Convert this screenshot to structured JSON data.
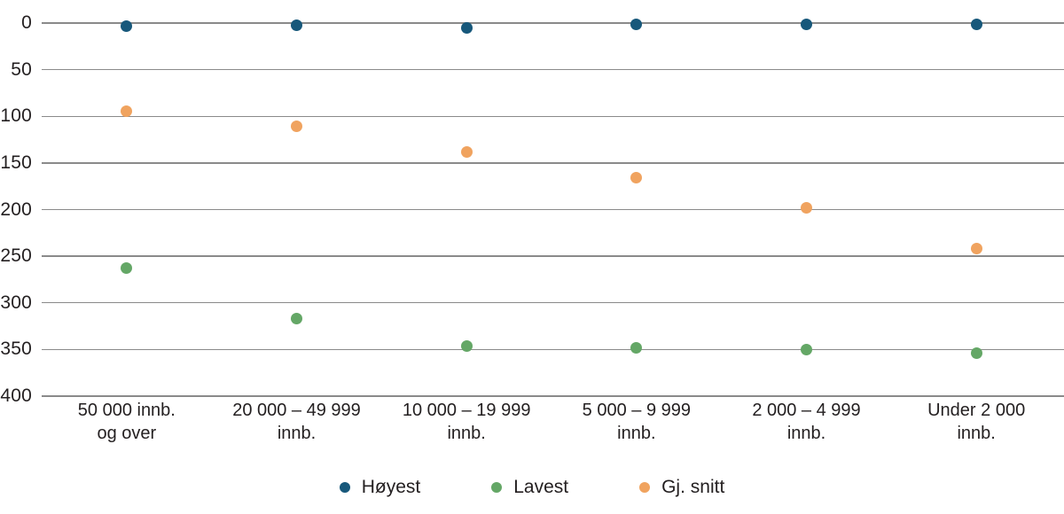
{
  "chart_data": {
    "type": "scatter",
    "title": "",
    "xlabel": "",
    "ylabel": "",
    "categories": [
      "50 000 innb.\nog over",
      "20 000 – 49 999\ninnb.",
      "10 000 – 19 999\ninnb.",
      "5 000 – 9 999\ninnb.",
      "2 000 – 4 999\ninnb.",
      "Under 2 000\ninnb."
    ],
    "series": [
      {
        "name": "Høyest",
        "color": "#17587b",
        "values": [
          3,
          2,
          5,
          1,
          1,
          1
        ]
      },
      {
        "name": "Lavest",
        "color": "#64a766",
        "values": [
          263,
          317,
          346,
          348,
          350,
          354
        ]
      },
      {
        "name": "Gj. snitt",
        "color": "#f0a35f",
        "values": [
          95,
          111,
          138,
          166,
          198,
          242
        ]
      }
    ],
    "y_axis": {
      "min": 0,
      "max": 400,
      "step": 50,
      "tick_labels": [
        "0",
        "50",
        "100",
        "150",
        "200",
        "250",
        "300",
        "350",
        "400"
      ],
      "direction": "values-increase-downward"
    },
    "grid": true,
    "legend_position": "bottom",
    "colors": {
      "gridline": "#8a8a8a",
      "text": "#231f20",
      "background": "#ffffff"
    }
  }
}
